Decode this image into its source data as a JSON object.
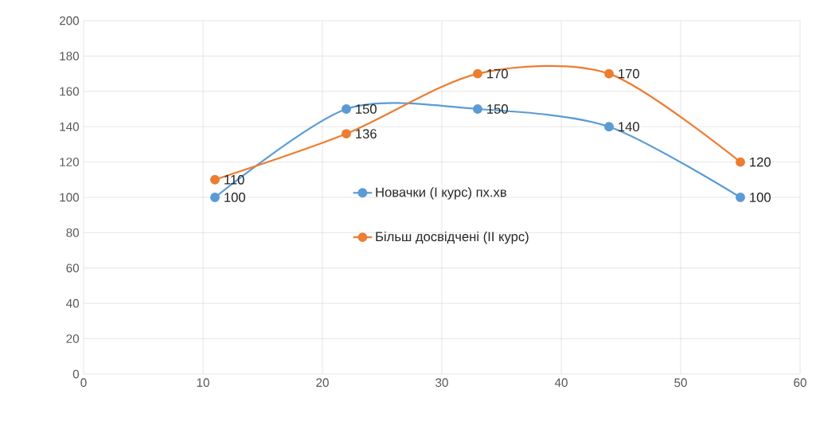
{
  "chart_data": {
    "type": "line",
    "x": [
      11,
      22,
      33,
      44,
      55
    ],
    "series": [
      {
        "name": "Новачки  (І курс) пх.хв",
        "color": "#5b9bd5",
        "values": [
          100,
          150,
          150,
          140,
          100
        ]
      },
      {
        "name": "Більш досвідчені (ІІ курс)",
        "color": "#ed7d31",
        "values": [
          110,
          136,
          170,
          170,
          120
        ]
      }
    ],
    "xlim": [
      0,
      60
    ],
    "xticks": [
      0,
      10,
      20,
      30,
      40,
      50,
      60
    ],
    "ylim": [
      0,
      200
    ],
    "yticks": [
      0,
      20,
      40,
      60,
      80,
      100,
      120,
      140,
      160,
      180,
      200
    ],
    "grid": true,
    "legend": "center",
    "marker": "circle",
    "line_style": "solid",
    "data_labels": true
  }
}
